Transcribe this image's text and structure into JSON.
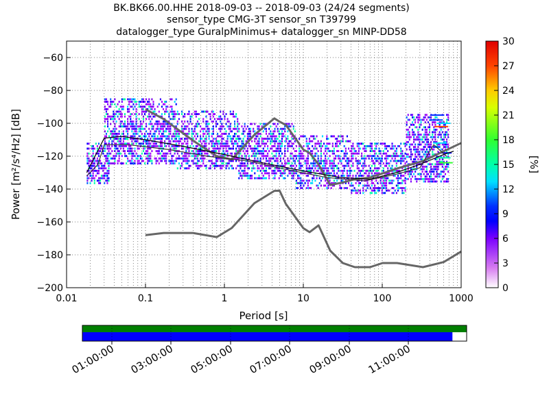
{
  "chart_data": {
    "type": "heatmap",
    "title_lines": [
      "BK.BK66.00.HHE   2018-09-03 -- 2018-09-03  (24/24 segments)",
      "sensor_type CMG-3T sensor_sn T39799",
      "datalogger_type GuralpMinimus+ datalogger_sn MINP-DD58"
    ],
    "xlabel": "Period [s]",
    "ylabel": "Power [m²/s⁴/Hz] [dB]",
    "xscale": "log",
    "xlim": [
      0.01,
      1000
    ],
    "ylim": [
      -200,
      -50
    ],
    "x_ticks": [
      {
        "value": 0.01,
        "label": "0.01"
      },
      {
        "value": 0.1,
        "label": "0.1"
      },
      {
        "value": 1,
        "label": "1"
      },
      {
        "value": 10,
        "label": "10"
      },
      {
        "value": 100,
        "label": "100"
      },
      {
        "value": 1000,
        "label": "1000"
      }
    ],
    "y_ticks": [
      {
        "value": -60,
        "label": "−60"
      },
      {
        "value": -80,
        "label": "−80"
      },
      {
        "value": -100,
        "label": "−100"
      },
      {
        "value": -120,
        "label": "−120"
      },
      {
        "value": -140,
        "label": "−140"
      },
      {
        "value": -160,
        "label": "−160"
      },
      {
        "value": -180,
        "label": "−180"
      },
      {
        "value": -200,
        "label": "−200"
      }
    ],
    "grid": true,
    "colorbar": {
      "label": "[%]",
      "range": [
        0,
        30
      ],
      "ticks": [
        {
          "value": 0,
          "label": "0"
        },
        {
          "value": 3,
          "label": "3"
        },
        {
          "value": 6,
          "label": "6"
        },
        {
          "value": 9,
          "label": "9"
        },
        {
          "value": 12,
          "label": "12"
        },
        {
          "value": 15,
          "label": "15"
        },
        {
          "value": 18,
          "label": "18"
        },
        {
          "value": 21,
          "label": "21"
        },
        {
          "value": 24,
          "label": "24"
        },
        {
          "value": 27,
          "label": "27"
        },
        {
          "value": 30,
          "label": "30"
        }
      ]
    },
    "reference_curves": [
      {
        "role": "high-noise-model",
        "points": [
          [
            0.1,
            -91.5
          ],
          [
            0.17,
            -97.4
          ],
          [
            0.4,
            -110.5
          ],
          [
            0.8,
            -120
          ],
          [
            1.24,
            -122
          ],
          [
            2.4,
            -107
          ],
          [
            4.3,
            -97
          ],
          [
            5,
            -99
          ],
          [
            6,
            -101
          ],
          [
            10,
            -116
          ],
          [
            12,
            -118
          ],
          [
            15.6,
            -125
          ],
          [
            21.9,
            -137.5
          ],
          [
            31.6,
            -136
          ],
          [
            45,
            -134
          ],
          [
            70,
            -133
          ],
          [
            101,
            -130.5
          ],
          [
            154,
            -127.5
          ],
          [
            328,
            -123
          ],
          [
            600,
            -117
          ],
          [
            1000,
            -112
          ]
        ]
      },
      {
        "role": "low-noise-model",
        "points": [
          [
            0.1,
            -168
          ],
          [
            0.17,
            -166.7
          ],
          [
            0.4,
            -166.7
          ],
          [
            0.8,
            -169.2
          ],
          [
            1.24,
            -163.7
          ],
          [
            2.4,
            -148.6
          ],
          [
            4.3,
            -141.1
          ],
          [
            5,
            -141
          ],
          [
            6,
            -149
          ],
          [
            10,
            -163.8
          ],
          [
            12,
            -166.2
          ],
          [
            15.6,
            -162.1
          ],
          [
            21.9,
            -177.5
          ],
          [
            31.6,
            -185
          ],
          [
            45,
            -187.5
          ],
          [
            70,
            -187.5
          ],
          [
            101,
            -185
          ],
          [
            154,
            -185
          ],
          [
            328,
            -187.5
          ],
          [
            600,
            -184.4
          ],
          [
            1000,
            -178
          ]
        ]
      }
    ],
    "mean_curves": [
      {
        "role": "mean",
        "points": [
          [
            0.018,
            -130
          ],
          [
            0.03,
            -109
          ],
          [
            0.05,
            -108
          ],
          [
            0.1,
            -110
          ],
          [
            0.3,
            -114
          ],
          [
            1,
            -119
          ],
          [
            3,
            -124
          ],
          [
            10,
            -129
          ],
          [
            30,
            -133
          ],
          [
            70,
            -134
          ],
          [
            150,
            -130
          ],
          [
            300,
            -125
          ],
          [
            600,
            -119
          ],
          [
            800,
            -117
          ]
        ]
      },
      {
        "role": "mode",
        "points": [
          [
            0.018,
            -132
          ],
          [
            0.025,
            -125
          ],
          [
            0.03,
            -113
          ],
          [
            0.06,
            -113
          ],
          [
            0.2,
            -116
          ],
          [
            0.6,
            -120
          ],
          [
            2,
            -123
          ],
          [
            6,
            -128
          ],
          [
            20,
            -133
          ],
          [
            60,
            -135
          ],
          [
            150,
            -131
          ],
          [
            300,
            -127
          ],
          [
            450,
            -113
          ],
          [
            650,
            -120
          ]
        ]
      }
    ],
    "psd_bands": [
      {
        "x_start": 0.018,
        "x_end": 0.035,
        "y_bottom": -137,
        "y_top": -112
      },
      {
        "x_start": 0.03,
        "x_end": 0.25,
        "y_bottom": -125,
        "y_top": -85
      },
      {
        "x_start": 0.25,
        "x_end": 1.5,
        "y_bottom": -128,
        "y_top": -93
      },
      {
        "x_start": 1.5,
        "x_end": 8,
        "y_bottom": -134,
        "y_top": -100
      },
      {
        "x_start": 8,
        "x_end": 40,
        "y_bottom": -140,
        "y_top": -108
      },
      {
        "x_start": 40,
        "x_end": 200,
        "y_bottom": -143,
        "y_top": -112
      },
      {
        "x_start": 200,
        "x_end": 700,
        "y_bottom": -136,
        "y_top": -94
      }
    ],
    "data_availability": {
      "time_labels": [
        "01:00:00",
        "03:00:00",
        "05:00:00",
        "07:00:00",
        "09:00:00",
        "11:00:00"
      ],
      "top_bar_coverage": 1.0,
      "bottom_bar_coverage": 0.963
    },
    "colors": {
      "high_noise": "#666666",
      "low_noise": "#666666",
      "mean_line": "#000000",
      "mode_line": "#333333",
      "gap_bar": "#007f00",
      "data_bar": "#0000ff"
    }
  }
}
